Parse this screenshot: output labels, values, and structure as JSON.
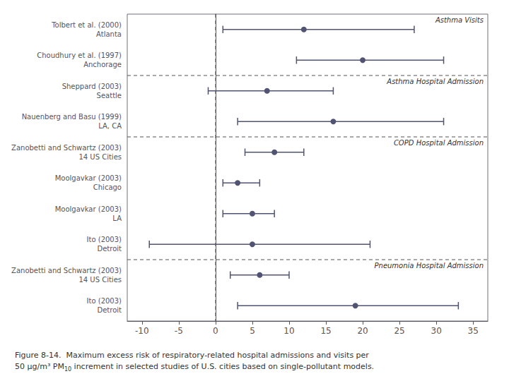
{
  "chart_data": {
    "type": "forest",
    "categories": [
      "Tolbert et al. (2000)\nAtlanta",
      "Choudhury et al. (1997)\nAnchorage",
      "Sheppard (2003)\nSeattle",
      "Nauenberg and Basu (1999)\nLA, CA",
      "Zanobetti and Schwartz (2003)\n14 US Cities",
      "Moolgavkar (2003)\nChicago",
      "Moolgavkar (2003)\nLA",
      "Ito (2003)\nDetroit",
      "Zanobetti and Schwartz (2003)\n14 US Cities",
      "Ito (2003)\nDetroit"
    ],
    "values": [
      12,
      20,
      7,
      16,
      8,
      3,
      5,
      5,
      6,
      19
    ],
    "lo": [
      1,
      11,
      -1,
      3,
      4,
      1,
      1,
      -9,
      2,
      3
    ],
    "hi": [
      27,
      31,
      16,
      31,
      12,
      6,
      8,
      21,
      10,
      33
    ],
    "group_labels": [
      "Asthma Visits",
      null,
      "Asthma Hospital Admission",
      null,
      "COPD Hospital Admission",
      null,
      null,
      null,
      "Pneumonia Hospital Admission",
      null
    ],
    "reference_x": 0,
    "xlim": [
      -12,
      37
    ],
    "xticks": [
      -10,
      -5,
      0,
      5,
      10,
      15,
      20,
      25,
      30,
      35
    ],
    "grid": false,
    "caption": {
      "line1": "Figure 8-14.  Maximum excess risk of respiratory-related hospital admissions and visits per",
      "line2": "50 μg/m³ PM",
      "subscript": "10",
      "line2_end": " increment in selected studies of U.S. cities based on single-pollutant models."
    }
  }
}
